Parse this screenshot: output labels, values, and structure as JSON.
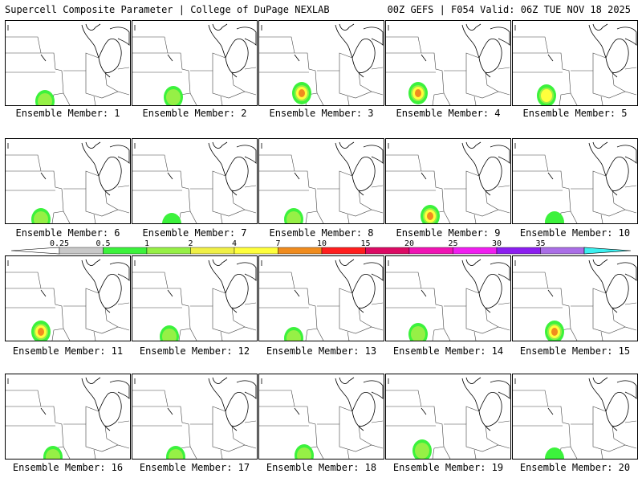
{
  "header": {
    "title_left": "Supercell Composite Parameter | College of DuPage NEXLAB",
    "title_right": "00Z GEFS | F054 Valid: 06Z TUE NOV 18 2025"
  },
  "legend": {
    "ticks": [
      "0.25",
      "0.5",
      "1",
      "2",
      "4",
      "7",
      "10",
      "15",
      "20",
      "25",
      "30",
      "35"
    ],
    "colors": [
      "#c8c8c8",
      "#3cf23c",
      "#96f046",
      "#f0f046",
      "#ffff3c",
      "#f08c1e",
      "#ff1e1e",
      "#dc0a64",
      "#f014b4",
      "#f01ef0",
      "#8c1ef0",
      "#aa6ee6",
      "#3cf0f0"
    ]
  },
  "members": [
    {
      "label": "Ensemble Member: 1",
      "blob": [
        55,
        125,
        1
      ]
    },
    {
      "label": "Ensemble Member: 2",
      "blob": [
        215,
        120,
        1
      ]
    },
    {
      "label": "Ensemble Member: 3",
      "blob": [
        375,
        115,
        3
      ]
    },
    {
      "label": "Ensemble Member: 4",
      "blob": [
        520,
        115,
        3
      ]
    },
    {
      "label": "Ensemble Member: 5",
      "blob": [
        680,
        118,
        2
      ]
    },
    {
      "label": "Ensemble Member: 6",
      "blob": [
        50,
        272,
        1
      ]
    },
    {
      "label": "Ensemble Member: 7",
      "blob": [
        213,
        278,
        0
      ]
    },
    {
      "label": "Ensemble Member: 8",
      "blob": [
        365,
        272,
        1
      ]
    },
    {
      "label": "Ensemble Member: 9",
      "blob": [
        535,
        268,
        3
      ]
    },
    {
      "label": "Ensemble Member: 10",
      "blob": [
        690,
        276,
        0
      ]
    },
    {
      "label": "Ensemble Member: 11",
      "blob": [
        50,
        412,
        3
      ]
    },
    {
      "label": "Ensemble Member: 12",
      "blob": [
        210,
        418,
        1
      ]
    },
    {
      "label": "Ensemble Member: 13",
      "blob": [
        365,
        420,
        1
      ]
    },
    {
      "label": "Ensemble Member: 14",
      "blob": [
        520,
        415,
        1
      ]
    },
    {
      "label": "Ensemble Member: 15",
      "blob": [
        690,
        412,
        3
      ]
    },
    {
      "label": "Ensemble Member: 16",
      "blob": [
        65,
        568,
        1
      ]
    },
    {
      "label": "Ensemble Member: 17",
      "blob": [
        218,
        568,
        1
      ]
    },
    {
      "label": "Ensemble Member: 18",
      "blob": [
        378,
        566,
        1
      ]
    },
    {
      "label": "Ensemble Member: 19",
      "blob": [
        525,
        560,
        1
      ]
    },
    {
      "label": "Ensemble Member: 20",
      "blob": [
        690,
        570,
        0
      ]
    }
  ]
}
